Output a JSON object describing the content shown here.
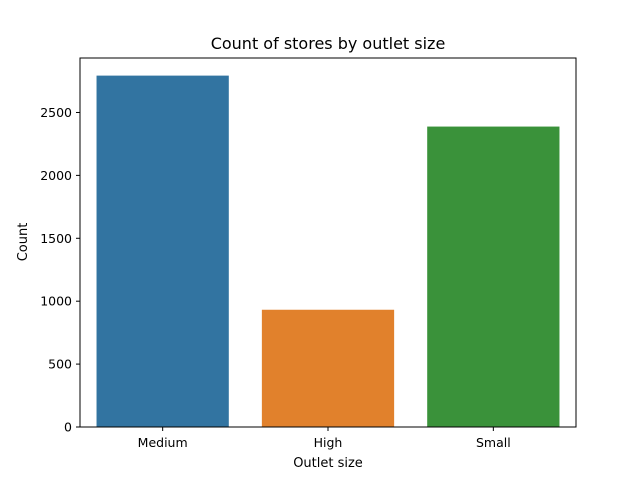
{
  "chart_data": {
    "type": "bar",
    "title": "Count of stores by outlet size",
    "xlabel": "Outlet size",
    "ylabel": "Count",
    "categories": [
      "Medium",
      "High",
      "Small"
    ],
    "values": [
      2793,
      932,
      2388
    ],
    "colors": [
      "#3274a1",
      "#e1812c",
      "#3a923a"
    ],
    "ylim": [
      0,
      2933
    ],
    "yticks": [
      0,
      500,
      1000,
      1500,
      2000,
      2500
    ],
    "grid": false,
    "legend": "none"
  }
}
